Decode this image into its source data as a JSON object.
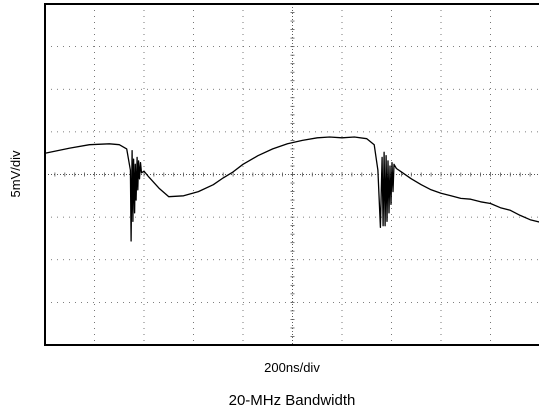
{
  "chart_data": {
    "type": "line",
    "title": "",
    "caption": "20-MHz Bandwidth",
    "xlabel": "200ns/div",
    "ylabel": "5mV/div",
    "xunit": "ns",
    "yunit": "mV",
    "xlim": [
      0,
      2000
    ],
    "ylim": [
      -20,
      20
    ],
    "x_divisions": 10,
    "y_divisions": 8,
    "grid": true,
    "trace_color": "#000000",
    "grid_color": "#555555",
    "series": [
      {
        "x": [
          0,
          100,
          180,
          260,
          300,
          330,
          345,
          348,
          352,
          355,
          358,
          362,
          365,
          368,
          372,
          375,
          378,
          382,
          386,
          390,
          400,
          420,
          460,
          500,
          560,
          620,
          680,
          720,
          760,
          800,
          860,
          920,
          980,
          1040,
          1100,
          1150,
          1200,
          1250,
          1300,
          1330,
          1345,
          1355,
          1362,
          1366,
          1370,
          1374,
          1378,
          1382,
          1386,
          1390,
          1394,
          1398,
          1402,
          1406,
          1410,
          1420,
          1440,
          1480,
          1520,
          1560,
          1600,
          1640,
          1680,
          1720,
          1760,
          1800,
          1840,
          1880,
          1920,
          1960,
          2000
        ],
        "y": [
          2.5,
          3.1,
          3.5,
          3.6,
          3.5,
          3.0,
          0.5,
          -7.8,
          2.8,
          -5.5,
          1.8,
          -4.5,
          1.2,
          -3.0,
          2.0,
          -1.8,
          1.6,
          -0.5,
          1.4,
          0.2,
          0.4,
          -0.3,
          -1.6,
          -2.6,
          -2.5,
          -2.0,
          -1.2,
          -0.4,
          0.3,
          1.2,
          2.2,
          3.0,
          3.6,
          4.0,
          4.3,
          4.4,
          4.3,
          4.4,
          4.2,
          3.5,
          0.5,
          -6.2,
          2.0,
          -6.0,
          2.6,
          -6.0,
          2.2,
          -5.5,
          1.6,
          -4.5,
          1.0,
          -3.5,
          1.4,
          -2.0,
          1.2,
          0.7,
          0.3,
          -0.5,
          -1.2,
          -1.8,
          -2.2,
          -2.5,
          -2.8,
          -2.9,
          -3.2,
          -3.4,
          -3.9,
          -4.2,
          -4.8,
          -5.3,
          -5.6
        ]
      }
    ]
  }
}
